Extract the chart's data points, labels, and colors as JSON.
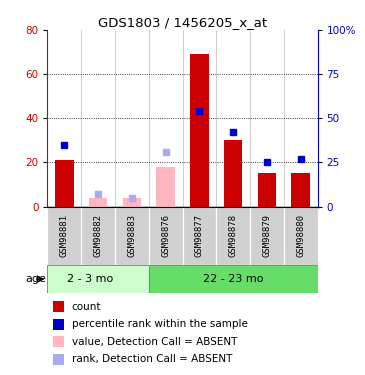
{
  "title": "GDS1803 / 1456205_x_at",
  "samples": [
    "GSM98881",
    "GSM98882",
    "GSM98883",
    "GSM98876",
    "GSM98877",
    "GSM98878",
    "GSM98879",
    "GSM98880"
  ],
  "groups": [
    {
      "label": "2 - 3 mo",
      "count": 3
    },
    {
      "label": "22 - 23 mo",
      "count": 5
    }
  ],
  "bar_values_red": [
    21,
    0,
    0,
    0,
    69,
    30,
    15,
    15
  ],
  "bar_values_pink": [
    0,
    4,
    4,
    18,
    0,
    0,
    0,
    0
  ],
  "dot_values_blue": [
    35,
    0,
    0,
    0,
    54,
    42,
    25,
    27
  ],
  "dot_values_lightblue": [
    0,
    7,
    5,
    31,
    0,
    0,
    0,
    0
  ],
  "ylim_left": [
    0,
    80
  ],
  "ylim_right": [
    0,
    100
  ],
  "yticks_left": [
    0,
    20,
    40,
    60,
    80
  ],
  "yticks_right": [
    0,
    25,
    50,
    75,
    100
  ],
  "ytick_labels_right": [
    "0",
    "25",
    "50",
    "75",
    "100%"
  ],
  "bar_color_red": "#cc0000",
  "bar_color_pink": "#ffb6c1",
  "dot_color_blue": "#0000cc",
  "dot_color_lightblue": "#aaaaee",
  "group1_color": "#ccffcc",
  "group2_color": "#66dd66",
  "sample_box_color": "#d0d0d0",
  "legend_items": [
    {
      "color": "#cc0000",
      "label": "count",
      "marker": "square"
    },
    {
      "color": "#0000cc",
      "label": "percentile rank within the sample",
      "marker": "square"
    },
    {
      "color": "#ffb6c1",
      "label": "value, Detection Call = ABSENT",
      "marker": "square"
    },
    {
      "color": "#aaaaee",
      "label": "rank, Detection Call = ABSENT",
      "marker": "square"
    }
  ]
}
